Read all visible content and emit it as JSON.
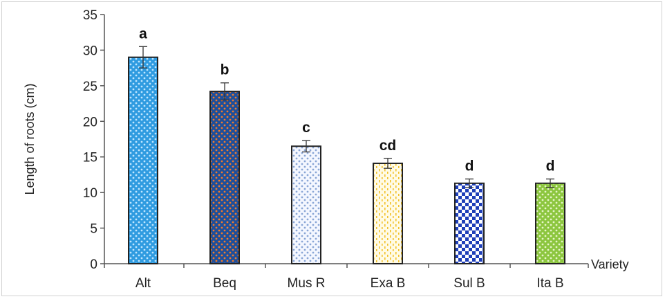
{
  "chart_data": {
    "type": "bar",
    "title": "",
    "xlabel": "Variety",
    "ylabel": "Length of roots (cm)",
    "ylim": [
      0,
      35
    ],
    "yticks": [
      0,
      5,
      10,
      15,
      20,
      25,
      30,
      35
    ],
    "categories": [
      "Alt",
      "Beq",
      "Mus R",
      "Exa B",
      "Sul B",
      "Ita B"
    ],
    "values": [
      29.0,
      24.2,
      16.5,
      14.1,
      11.3,
      11.3
    ],
    "errors": [
      1.5,
      1.2,
      0.8,
      0.7,
      0.6,
      0.6
    ],
    "significance": [
      "a",
      "b",
      "c",
      "cd",
      "d",
      "d"
    ],
    "fills": [
      {
        "pattern": "dots",
        "base": "#2f9be0",
        "dot": "#bfe6ff"
      },
      {
        "pattern": "dots",
        "base": "#1f4f9a",
        "dot": "#f07a2a"
      },
      {
        "pattern": "dots",
        "base": "#f4f7ff",
        "dot": "#8aa6d6"
      },
      {
        "pattern": "dashes",
        "base": "#fffbe6",
        "dot": "#f2c22a"
      },
      {
        "pattern": "checker",
        "base": "#ffffff",
        "dot": "#1f3fb8"
      },
      {
        "pattern": "dots",
        "base": "#8cc63f",
        "dot": "#e6f5c8"
      }
    ],
    "grid": false,
    "legend": "none"
  }
}
